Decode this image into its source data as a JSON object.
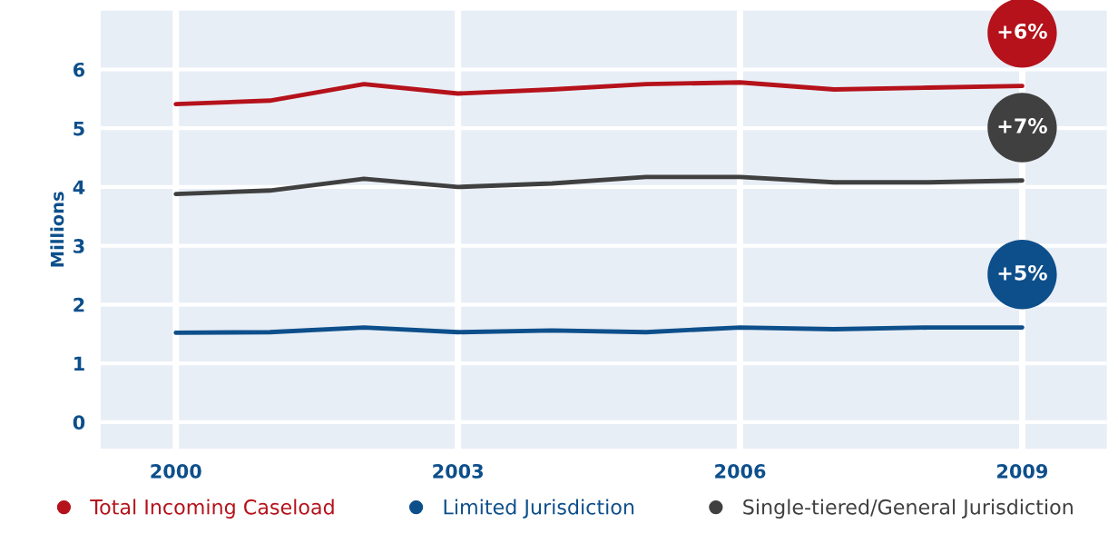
{
  "chart_data": {
    "type": "line",
    "ylabel": "Millions",
    "x": [
      2000,
      2001,
      2002,
      2003,
      2004,
      2005,
      2006,
      2007,
      2008,
      2009
    ],
    "series": [
      {
        "name": "Total Incoming Caseload",
        "color": "#b5121b",
        "values": [
          5.41,
          5.47,
          5.75,
          5.59,
          5.66,
          5.75,
          5.78,
          5.66,
          5.69,
          5.72
        ]
      },
      {
        "name": "Limited Jurisdiction",
        "color": "#0d4f8b",
        "values": [
          1.52,
          1.53,
          1.61,
          1.53,
          1.56,
          1.53,
          1.61,
          1.58,
          1.61,
          1.61
        ]
      },
      {
        "name": "Single-tiered/General Jurisdiction",
        "color": "#404040",
        "values": [
          3.88,
          3.94,
          4.14,
          4.0,
          4.06,
          4.17,
          4.17,
          4.08,
          4.08,
          4.11
        ]
      }
    ],
    "annotations": [
      "+6%",
      "+5%",
      "+7%"
    ],
    "xlim": [
      1999.2,
      2009.9
    ],
    "xticks": [
      2000,
      2003,
      2006,
      2009
    ],
    "ylim": [
      -0.45,
      7
    ],
    "yticks": [
      0,
      1,
      2,
      3,
      4,
      5,
      6
    ],
    "grid": true,
    "legend": "bottom",
    "marker": "none",
    "line_style": "solid"
  }
}
